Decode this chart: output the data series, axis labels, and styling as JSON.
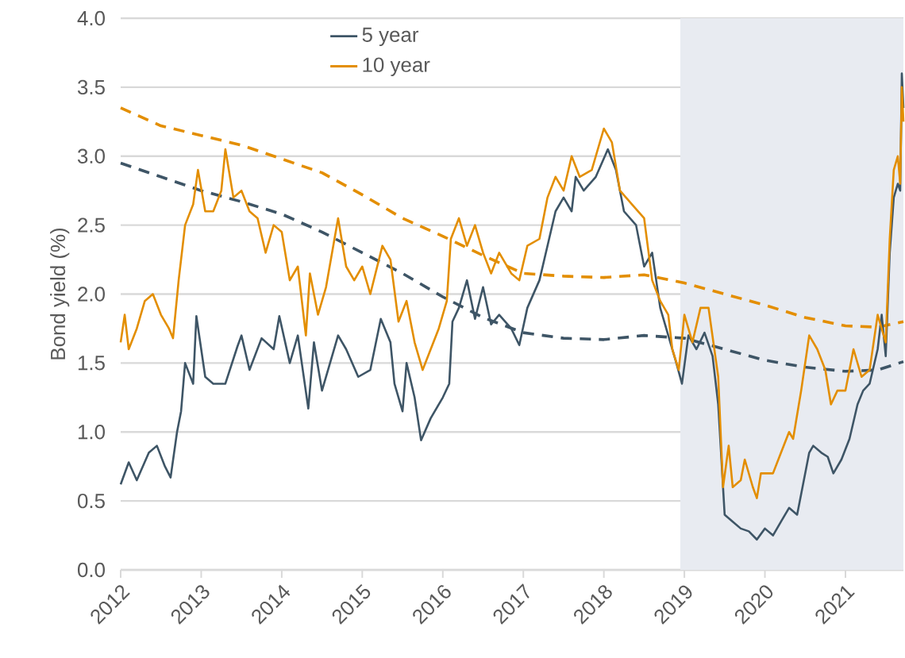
{
  "chart_data": {
    "type": "line",
    "ylabel": "Bond yield (%)",
    "xlim": [
      2012,
      2021.72
    ],
    "ylim": [
      0,
      4
    ],
    "xticks": [
      2012,
      2013,
      2014,
      2015,
      2016,
      2017,
      2018,
      2019,
      2020,
      2021
    ],
    "yticks": [
      {
        "value": 0,
        "label": "0.0"
      },
      {
        "value": 0.5,
        "label": "0.5"
      },
      {
        "value": 1,
        "label": "1.0"
      },
      {
        "value": 1.5,
        "label": "1.5"
      },
      {
        "value": 2,
        "label": "2.0"
      },
      {
        "value": 2.5,
        "label": "2.5"
      },
      {
        "value": 3,
        "label": "3.0"
      },
      {
        "value": 3.5,
        "label": "3.5"
      },
      {
        "value": 4,
        "label": "4.0"
      }
    ],
    "grid": "y",
    "legend": "top",
    "marker": "none",
    "bands": [
      {
        "axis": "x",
        "from": 2018.95,
        "to": 2021.72,
        "color": "#e8ebf1"
      }
    ],
    "series": [
      {
        "name": "5 year",
        "color": "#3e5566",
        "line_style": "solid",
        "x": [
          2012.0,
          2012.1,
          2012.2,
          2012.35,
          2012.45,
          2012.55,
          2012.62,
          2012.7,
          2012.75,
          2012.8,
          2012.9,
          2012.94,
          2013.05,
          2013.15,
          2013.3,
          2013.45,
          2013.5,
          2013.6,
          2013.75,
          2013.9,
          2013.97,
          2014.1,
          2014.2,
          2014.33,
          2014.4,
          2014.5,
          2014.7,
          2014.8,
          2014.95,
          2015.1,
          2015.23,
          2015.35,
          2015.4,
          2015.5,
          2015.55,
          2015.65,
          2015.73,
          2015.85,
          2016.0,
          2016.08,
          2016.12,
          2016.2,
          2016.3,
          2016.4,
          2016.5,
          2016.6,
          2016.7,
          2016.85,
          2016.95,
          2017.05,
          2017.2,
          2017.3,
          2017.4,
          2017.5,
          2017.6,
          2017.65,
          2017.75,
          2017.9,
          2018.05,
          2018.15,
          2018.25,
          2018.4,
          2018.5,
          2018.6,
          2018.7,
          2018.8,
          2018.9,
          2018.97,
          2019.05,
          2019.15,
          2019.25,
          2019.35,
          2019.42,
          2019.5,
          2019.6,
          2019.7,
          2019.8,
          2019.9,
          2020.0,
          2020.1,
          2020.2,
          2020.3,
          2020.4,
          2020.45,
          2020.55,
          2020.6,
          2020.7,
          2020.78,
          2020.85,
          2020.95,
          2021.05,
          2021.15,
          2021.22,
          2021.3,
          2021.4,
          2021.45,
          2021.5,
          2021.55,
          2021.6,
          2021.65,
          2021.68,
          2021.7,
          2021.72
        ],
        "values": [
          0.62,
          0.78,
          0.65,
          0.85,
          0.9,
          0.75,
          0.67,
          1.0,
          1.15,
          1.5,
          1.35,
          1.84,
          1.4,
          1.35,
          1.35,
          1.62,
          1.7,
          1.45,
          1.68,
          1.6,
          1.84,
          1.5,
          1.7,
          1.17,
          1.65,
          1.3,
          1.7,
          1.6,
          1.4,
          1.45,
          1.82,
          1.65,
          1.35,
          1.15,
          1.5,
          1.25,
          0.94,
          1.1,
          1.25,
          1.35,
          1.8,
          1.9,
          2.1,
          1.82,
          2.05,
          1.78,
          1.85,
          1.75,
          1.63,
          1.9,
          2.1,
          2.35,
          2.6,
          2.7,
          2.6,
          2.85,
          2.75,
          2.85,
          3.05,
          2.9,
          2.6,
          2.5,
          2.2,
          2.3,
          1.9,
          1.7,
          1.5,
          1.35,
          1.7,
          1.6,
          1.72,
          1.55,
          1.2,
          0.4,
          0.35,
          0.3,
          0.28,
          0.22,
          0.3,
          0.25,
          0.35,
          0.45,
          0.4,
          0.55,
          0.85,
          0.9,
          0.85,
          0.82,
          0.7,
          0.8,
          0.95,
          1.2,
          1.3,
          1.35,
          1.6,
          1.85,
          1.55,
          2.3,
          2.7,
          2.8,
          2.75,
          3.6,
          3.35
        ]
      },
      {
        "name": "10 year",
        "color": "#e38e00",
        "line_style": "solid",
        "x": [
          2012.0,
          2012.05,
          2012.1,
          2012.2,
          2012.3,
          2012.4,
          2012.5,
          2012.6,
          2012.65,
          2012.72,
          2012.8,
          2012.9,
          2012.96,
          2013.05,
          2013.15,
          2013.25,
          2013.3,
          2013.4,
          2013.5,
          2013.6,
          2013.7,
          2013.8,
          2013.9,
          2014.0,
          2014.1,
          2014.2,
          2014.3,
          2014.35,
          2014.45,
          2014.55,
          2014.7,
          2014.8,
          2014.9,
          2015.0,
          2015.1,
          2015.25,
          2015.35,
          2015.45,
          2015.55,
          2015.65,
          2015.75,
          2015.85,
          2015.95,
          2016.05,
          2016.1,
          2016.2,
          2016.3,
          2016.4,
          2016.5,
          2016.6,
          2016.7,
          2016.85,
          2016.95,
          2017.05,
          2017.2,
          2017.3,
          2017.4,
          2017.5,
          2017.6,
          2017.7,
          2017.85,
          2018.0,
          2018.1,
          2018.2,
          2018.35,
          2018.5,
          2018.6,
          2018.7,
          2018.8,
          2018.85,
          2018.93,
          2019.0,
          2019.1,
          2019.2,
          2019.3,
          2019.42,
          2019.48,
          2019.55,
          2019.6,
          2019.7,
          2019.75,
          2019.85,
          2019.9,
          2019.95,
          2020.1,
          2020.2,
          2020.3,
          2020.35,
          2020.45,
          2020.55,
          2020.65,
          2020.75,
          2020.82,
          2020.9,
          2021.0,
          2021.1,
          2021.2,
          2021.3,
          2021.4,
          2021.5,
          2021.55,
          2021.6,
          2021.65,
          2021.68,
          2021.7,
          2021.72
        ],
        "values": [
          1.65,
          1.85,
          1.6,
          1.75,
          1.95,
          2.0,
          1.85,
          1.75,
          1.68,
          2.1,
          2.5,
          2.65,
          2.9,
          2.6,
          2.6,
          2.75,
          3.05,
          2.7,
          2.75,
          2.6,
          2.55,
          2.3,
          2.5,
          2.45,
          2.1,
          2.2,
          1.7,
          2.15,
          1.85,
          2.05,
          2.55,
          2.2,
          2.1,
          2.2,
          2.0,
          2.35,
          2.25,
          1.8,
          1.95,
          1.65,
          1.45,
          1.6,
          1.75,
          1.95,
          2.4,
          2.55,
          2.35,
          2.5,
          2.3,
          2.15,
          2.3,
          2.15,
          2.1,
          2.35,
          2.4,
          2.7,
          2.85,
          2.75,
          3.0,
          2.85,
          2.9,
          3.2,
          3.1,
          2.75,
          2.65,
          2.55,
          2.1,
          1.95,
          1.85,
          1.6,
          1.45,
          1.85,
          1.65,
          1.9,
          1.9,
          1.4,
          0.6,
          0.9,
          0.6,
          0.65,
          0.8,
          0.6,
          0.52,
          0.7,
          0.7,
          0.85,
          1.0,
          0.95,
          1.3,
          1.7,
          1.6,
          1.45,
          1.2,
          1.3,
          1.3,
          1.6,
          1.4,
          1.45,
          1.85,
          1.65,
          2.4,
          2.9,
          3.0,
          2.8,
          3.5,
          3.25
        ]
      },
      {
        "color": "#3e5566",
        "line_style": "dashed",
        "x": [
          2012.0,
          2012.5,
          2013.0,
          2013.5,
          2014.0,
          2014.5,
          2015.0,
          2015.5,
          2016.0,
          2016.5,
          2017.0,
          2017.5,
          2018.0,
          2018.5,
          2019.0,
          2019.5,
          2020.0,
          2020.5,
          2021.0,
          2021.4,
          2021.72
        ],
        "values": [
          2.95,
          2.85,
          2.75,
          2.67,
          2.58,
          2.45,
          2.3,
          2.15,
          1.98,
          1.83,
          1.72,
          1.68,
          1.67,
          1.7,
          1.68,
          1.6,
          1.52,
          1.47,
          1.44,
          1.45,
          1.51
        ]
      },
      {
        "color": "#e38e00",
        "line_style": "dashed",
        "x": [
          2012.0,
          2012.5,
          2013.0,
          2013.5,
          2014.0,
          2014.5,
          2015.0,
          2015.5,
          2016.0,
          2016.5,
          2017.0,
          2017.5,
          2018.0,
          2018.5,
          2019.0,
          2019.5,
          2020.0,
          2020.5,
          2021.0,
          2021.4,
          2021.72
        ],
        "values": [
          3.35,
          3.22,
          3.15,
          3.08,
          2.98,
          2.88,
          2.72,
          2.55,
          2.42,
          2.28,
          2.15,
          2.13,
          2.12,
          2.14,
          2.08,
          2.0,
          1.92,
          1.83,
          1.77,
          1.76,
          1.8
        ]
      }
    ]
  }
}
